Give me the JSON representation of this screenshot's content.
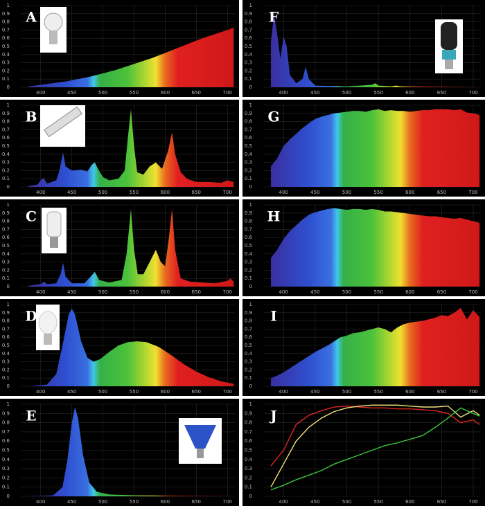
{
  "chart_data": [
    {
      "type": "area",
      "title": "A",
      "xlim": [
        368,
        712
      ],
      "ylim": [
        0,
        1
      ],
      "xticks": [
        400,
        450,
        500,
        550,
        600,
        650,
        700
      ],
      "yticks": [
        0,
        0.1,
        0.2,
        0.3,
        0.4,
        0.5,
        0.6,
        0.7,
        0.8,
        0.9,
        1
      ],
      "grid": true,
      "gradient": [
        [
          380,
          "#3a2fa0"
        ],
        [
          440,
          "#2f4fd0"
        ],
        [
          475,
          "#3a6fe0"
        ],
        [
          485,
          "#40c8e8"
        ],
        [
          495,
          "#35b048"
        ],
        [
          540,
          "#4cc23a"
        ],
        [
          570,
          "#b8d830"
        ],
        [
          585,
          "#f0e030"
        ],
        [
          600,
          "#e86a20"
        ],
        [
          620,
          "#e02020"
        ],
        [
          710,
          "#d01818"
        ]
      ],
      "x": [
        380,
        400,
        420,
        440,
        460,
        480,
        500,
        520,
        540,
        560,
        580,
        600,
        620,
        640,
        660,
        680,
        700,
        710
      ],
      "values": [
        0.01,
        0.03,
        0.05,
        0.07,
        0.1,
        0.13,
        0.17,
        0.21,
        0.26,
        0.31,
        0.36,
        0.42,
        0.48,
        0.54,
        0.6,
        0.65,
        0.7,
        0.73
      ]
    },
    {
      "type": "area",
      "title": "B",
      "xlim": [
        368,
        712
      ],
      "ylim": [
        0,
        1
      ],
      "xticks": [
        400,
        450,
        500,
        550,
        600,
        650,
        700
      ],
      "yticks": [
        0,
        0.1,
        0.2,
        0.3,
        0.4,
        0.5,
        0.6,
        0.7,
        0.8,
        0.9,
        1
      ],
      "grid": true,
      "gradient": [
        [
          380,
          "#3a2fa0"
        ],
        [
          440,
          "#2f4fd0"
        ],
        [
          475,
          "#3a6fe0"
        ],
        [
          485,
          "#40c8e8"
        ],
        [
          495,
          "#35b048"
        ],
        [
          540,
          "#4cc23a"
        ],
        [
          570,
          "#b8d830"
        ],
        [
          585,
          "#f0e030"
        ],
        [
          600,
          "#e86a20"
        ],
        [
          620,
          "#e02020"
        ],
        [
          710,
          "#d01818"
        ]
      ],
      "x": [
        380,
        395,
        400,
        405,
        410,
        425,
        430,
        436,
        440,
        450,
        465,
        475,
        482,
        487,
        492,
        500,
        510,
        525,
        535,
        540,
        545,
        550,
        555,
        565,
        575,
        585,
        595,
        605,
        611,
        616,
        625,
        635,
        650,
        670,
        690,
        700,
        710
      ],
      "values": [
        0.01,
        0.03,
        0.08,
        0.11,
        0.04,
        0.08,
        0.2,
        0.42,
        0.25,
        0.2,
        0.21,
        0.19,
        0.27,
        0.3,
        0.22,
        0.12,
        0.08,
        0.1,
        0.2,
        0.6,
        0.95,
        0.5,
        0.18,
        0.15,
        0.25,
        0.3,
        0.22,
        0.45,
        0.67,
        0.4,
        0.18,
        0.1,
        0.06,
        0.06,
        0.05,
        0.08,
        0.06
      ]
    },
    {
      "type": "area",
      "title": "C",
      "xlim": [
        368,
        712
      ],
      "ylim": [
        0,
        1
      ],
      "xticks": [
        400,
        450,
        500,
        550,
        600,
        650,
        700
      ],
      "yticks": [
        0,
        0.1,
        0.2,
        0.3,
        0.4,
        0.5,
        0.6,
        0.7,
        0.8,
        0.9,
        1
      ],
      "grid": true,
      "gradient": [
        [
          380,
          "#3a2fa0"
        ],
        [
          440,
          "#2f4fd0"
        ],
        [
          475,
          "#3a6fe0"
        ],
        [
          485,
          "#40c8e8"
        ],
        [
          495,
          "#35b048"
        ],
        [
          540,
          "#4cc23a"
        ],
        [
          570,
          "#b8d830"
        ],
        [
          585,
          "#f0e030"
        ],
        [
          600,
          "#e86a20"
        ],
        [
          620,
          "#e02020"
        ],
        [
          710,
          "#d01818"
        ]
      ],
      "x": [
        380,
        400,
        405,
        410,
        425,
        432,
        436,
        440,
        450,
        470,
        480,
        487,
        494,
        510,
        530,
        538,
        545,
        550,
        556,
        565,
        575,
        585,
        593,
        600,
        606,
        611,
        616,
        625,
        640,
        660,
        680,
        700,
        705,
        710
      ],
      "values": [
        0.01,
        0.03,
        0.06,
        0.03,
        0.04,
        0.15,
        0.29,
        0.12,
        0.04,
        0.04,
        0.12,
        0.18,
        0.08,
        0.05,
        0.08,
        0.4,
        0.95,
        0.45,
        0.15,
        0.15,
        0.3,
        0.45,
        0.3,
        0.25,
        0.6,
        0.95,
        0.45,
        0.1,
        0.06,
        0.05,
        0.04,
        0.07,
        0.1,
        0.06
      ]
    },
    {
      "type": "area",
      "title": "D",
      "xlim": [
        368,
        712
      ],
      "ylim": [
        0,
        1
      ],
      "xticks": [
        400,
        450,
        500,
        550,
        600,
        650,
        700
      ],
      "yticks": [
        0,
        0.1,
        0.2,
        0.3,
        0.4,
        0.5,
        0.6,
        0.7,
        0.8,
        0.9,
        1
      ],
      "grid": true,
      "gradient": [
        [
          380,
          "#3a2fa0"
        ],
        [
          440,
          "#2f4fd0"
        ],
        [
          475,
          "#3a6fe0"
        ],
        [
          485,
          "#40c8e8"
        ],
        [
          495,
          "#35b048"
        ],
        [
          540,
          "#4cc23a"
        ],
        [
          570,
          "#b8d830"
        ],
        [
          585,
          "#f0e030"
        ],
        [
          600,
          "#e86a20"
        ],
        [
          620,
          "#e02020"
        ],
        [
          710,
          "#d01818"
        ]
      ],
      "x": [
        380,
        410,
        425,
        435,
        445,
        450,
        455,
        465,
        475,
        485,
        495,
        510,
        525,
        540,
        555,
        570,
        590,
        610,
        630,
        650,
        670,
        690,
        710
      ],
      "values": [
        0,
        0.02,
        0.15,
        0.5,
        0.88,
        0.95,
        0.88,
        0.55,
        0.35,
        0.3,
        0.33,
        0.42,
        0.5,
        0.54,
        0.55,
        0.54,
        0.48,
        0.38,
        0.27,
        0.18,
        0.11,
        0.06,
        0.03
      ]
    },
    {
      "type": "area",
      "title": "E",
      "xlim": [
        368,
        712
      ],
      "ylim": [
        0,
        1
      ],
      "xticks": [
        400,
        450,
        500,
        550,
        600,
        650,
        700
      ],
      "yticks": [
        0,
        0.1,
        0.2,
        0.3,
        0.4,
        0.5,
        0.6,
        0.7,
        0.8,
        0.9,
        1
      ],
      "grid": true,
      "gradient": [
        [
          380,
          "#3a2fa0"
        ],
        [
          440,
          "#2f4fd0"
        ],
        [
          475,
          "#3a6fe0"
        ],
        [
          485,
          "#40c8e8"
        ],
        [
          495,
          "#35b048"
        ],
        [
          540,
          "#4cc23a"
        ],
        [
          570,
          "#b8d830"
        ],
        [
          585,
          "#f0e030"
        ],
        [
          600,
          "#e86a20"
        ],
        [
          620,
          "#e02020"
        ],
        [
          710,
          "#d01818"
        ]
      ],
      "x": [
        380,
        420,
        435,
        443,
        450,
        455,
        460,
        468,
        478,
        490,
        510,
        550,
        710
      ],
      "values": [
        0,
        0.01,
        0.1,
        0.4,
        0.8,
        0.97,
        0.85,
        0.45,
        0.15,
        0.05,
        0.02,
        0.01,
        0
      ]
    },
    {
      "type": "area",
      "title": "F",
      "xlim": [
        368,
        712
      ],
      "ylim": [
        0,
        1
      ],
      "xticks": [
        400,
        450,
        500,
        550,
        600,
        650,
        700
      ],
      "yticks": [
        0,
        0.1,
        0.2,
        0.3,
        0.4,
        0.5,
        0.6,
        0.7,
        0.8,
        0.9,
        1
      ],
      "grid": true,
      "gradient": [
        [
          380,
          "#3a2fa0"
        ],
        [
          440,
          "#2f4fd0"
        ],
        [
          475,
          "#3a6fe0"
        ],
        [
          485,
          "#40c8e8"
        ],
        [
          495,
          "#35b048"
        ],
        [
          540,
          "#4cc23a"
        ],
        [
          570,
          "#b8d830"
        ],
        [
          585,
          "#f0e030"
        ],
        [
          600,
          "#e86a20"
        ],
        [
          620,
          "#e02020"
        ],
        [
          710,
          "#d01818"
        ]
      ],
      "x": [
        380,
        385,
        390,
        395,
        400,
        405,
        410,
        420,
        430,
        435,
        440,
        450,
        500,
        540,
        545,
        550,
        570,
        578,
        585,
        600,
        710
      ],
      "values": [
        0.55,
        0.9,
        0.65,
        0.35,
        0.62,
        0.5,
        0.15,
        0.05,
        0.1,
        0.25,
        0.1,
        0.02,
        0.01,
        0.03,
        0.05,
        0.02,
        0.01,
        0.02,
        0.01,
        0.01,
        0
      ]
    },
    {
      "type": "area",
      "title": "G",
      "xlim": [
        368,
        712
      ],
      "ylim": [
        0,
        1
      ],
      "xticks": [
        400,
        450,
        500,
        550,
        600,
        650,
        700
      ],
      "yticks": [
        0,
        0.1,
        0.2,
        0.3,
        0.4,
        0.5,
        0.6,
        0.7,
        0.8,
        0.9,
        1
      ],
      "grid": true,
      "gradient": [
        [
          380,
          "#3a2fa0"
        ],
        [
          440,
          "#2f4fd0"
        ],
        [
          475,
          "#3a6fe0"
        ],
        [
          485,
          "#40c8e8"
        ],
        [
          495,
          "#35b048"
        ],
        [
          540,
          "#4cc23a"
        ],
        [
          570,
          "#b8d830"
        ],
        [
          585,
          "#f0e030"
        ],
        [
          600,
          "#e86a20"
        ],
        [
          620,
          "#e02020"
        ],
        [
          710,
          "#d01818"
        ]
      ],
      "x": [
        380,
        390,
        400,
        410,
        420,
        430,
        440,
        450,
        460,
        470,
        480,
        490,
        500,
        510,
        520,
        530,
        540,
        550,
        560,
        570,
        580,
        590,
        600,
        610,
        620,
        630,
        640,
        650,
        660,
        670,
        680,
        690,
        700,
        710
      ],
      "values": [
        0.25,
        0.35,
        0.5,
        0.58,
        0.65,
        0.72,
        0.78,
        0.83,
        0.86,
        0.88,
        0.9,
        0.91,
        0.92,
        0.93,
        0.93,
        0.92,
        0.94,
        0.95,
        0.93,
        0.94,
        0.93,
        0.93,
        0.92,
        0.93,
        0.94,
        0.94,
        0.95,
        0.95,
        0.95,
        0.94,
        0.95,
        0.91,
        0.9,
        0.88
      ]
    },
    {
      "type": "area",
      "title": "H",
      "xlim": [
        368,
        712
      ],
      "ylim": [
        0,
        1
      ],
      "xticks": [
        400,
        450,
        500,
        550,
        600,
        650,
        700
      ],
      "yticks": [
        0,
        0.1,
        0.2,
        0.3,
        0.4,
        0.5,
        0.6,
        0.7,
        0.8,
        0.9,
        1
      ],
      "grid": true,
      "gradient": [
        [
          380,
          "#3a2fa0"
        ],
        [
          440,
          "#2f4fd0"
        ],
        [
          475,
          "#3a6fe0"
        ],
        [
          485,
          "#40c8e8"
        ],
        [
          495,
          "#35b048"
        ],
        [
          540,
          "#4cc23a"
        ],
        [
          570,
          "#b8d830"
        ],
        [
          585,
          "#f0e030"
        ],
        [
          600,
          "#e86a20"
        ],
        [
          620,
          "#e02020"
        ],
        [
          710,
          "#d01818"
        ]
      ],
      "x": [
        380,
        390,
        400,
        410,
        420,
        430,
        440,
        450,
        460,
        470,
        480,
        490,
        500,
        510,
        520,
        530,
        540,
        550,
        560,
        570,
        580,
        590,
        600,
        610,
        620,
        630,
        640,
        650,
        660,
        670,
        680,
        690,
        700,
        710
      ],
      "values": [
        0.35,
        0.45,
        0.58,
        0.68,
        0.75,
        0.82,
        0.88,
        0.91,
        0.93,
        0.95,
        0.96,
        0.95,
        0.94,
        0.95,
        0.95,
        0.94,
        0.95,
        0.94,
        0.92,
        0.92,
        0.91,
        0.9,
        0.89,
        0.88,
        0.87,
        0.86,
        0.86,
        0.85,
        0.84,
        0.83,
        0.84,
        0.82,
        0.8,
        0.78
      ]
    },
    {
      "type": "area",
      "title": "I",
      "xlim": [
        368,
        712
      ],
      "ylim": [
        0,
        1
      ],
      "xticks": [
        400,
        450,
        500,
        550,
        600,
        650,
        700
      ],
      "yticks": [
        0,
        0.1,
        0.2,
        0.3,
        0.4,
        0.5,
        0.6,
        0.7,
        0.8,
        0.9,
        1
      ],
      "grid": true,
      "gradient": [
        [
          380,
          "#3a2fa0"
        ],
        [
          440,
          "#2f4fd0"
        ],
        [
          475,
          "#3a6fe0"
        ],
        [
          485,
          "#40c8e8"
        ],
        [
          495,
          "#35b048"
        ],
        [
          540,
          "#4cc23a"
        ],
        [
          570,
          "#b8d830"
        ],
        [
          585,
          "#f0e030"
        ],
        [
          600,
          "#e86a20"
        ],
        [
          620,
          "#e02020"
        ],
        [
          710,
          "#d01818"
        ]
      ],
      "x": [
        380,
        390,
        400,
        410,
        420,
        430,
        440,
        450,
        460,
        470,
        480,
        490,
        500,
        510,
        520,
        530,
        540,
        550,
        560,
        570,
        580,
        590,
        600,
        610,
        620,
        630,
        640,
        650,
        660,
        670,
        680,
        690,
        700,
        710
      ],
      "values": [
        0.1,
        0.13,
        0.17,
        0.22,
        0.27,
        0.32,
        0.37,
        0.42,
        0.46,
        0.5,
        0.55,
        0.6,
        0.62,
        0.65,
        0.66,
        0.68,
        0.7,
        0.72,
        0.7,
        0.66,
        0.72,
        0.76,
        0.78,
        0.79,
        0.8,
        0.82,
        0.84,
        0.87,
        0.86,
        0.9,
        0.96,
        0.82,
        0.93,
        0.85
      ]
    },
    {
      "type": "line",
      "title": "J",
      "xlim": [
        368,
        712
      ],
      "ylim": [
        0,
        1
      ],
      "xticks": [
        400,
        450,
        500,
        550,
        600,
        650,
        700
      ],
      "yticks": [
        0,
        0.1,
        0.2,
        0.3,
        0.4,
        0.5,
        0.6,
        0.7,
        0.8,
        0.9,
        1
      ],
      "grid": true,
      "x": [
        380,
        400,
        420,
        440,
        460,
        480,
        500,
        520,
        540,
        560,
        580,
        600,
        620,
        640,
        660,
        680,
        700,
        710
      ],
      "series": [
        {
          "color": "#e02424",
          "values": [
            0.33,
            0.5,
            0.78,
            0.88,
            0.93,
            0.97,
            0.98,
            0.97,
            0.96,
            0.96,
            0.95,
            0.95,
            0.94,
            0.93,
            0.9,
            0.8,
            0.83,
            0.78
          ]
        },
        {
          "color": "#f2e27a",
          "values": [
            0.1,
            0.35,
            0.6,
            0.75,
            0.85,
            0.92,
            0.96,
            0.98,
            0.99,
            0.99,
            0.99,
            0.98,
            0.97,
            0.97,
            0.98,
            0.86,
            0.93,
            0.88
          ]
        },
        {
          "color": "#3cc43c",
          "values": [
            0.07,
            0.12,
            0.18,
            0.23,
            0.28,
            0.35,
            0.4,
            0.45,
            0.5,
            0.55,
            0.58,
            0.62,
            0.66,
            0.75,
            0.85,
            0.96,
            0.9,
            0.87
          ]
        }
      ]
    }
  ]
}
